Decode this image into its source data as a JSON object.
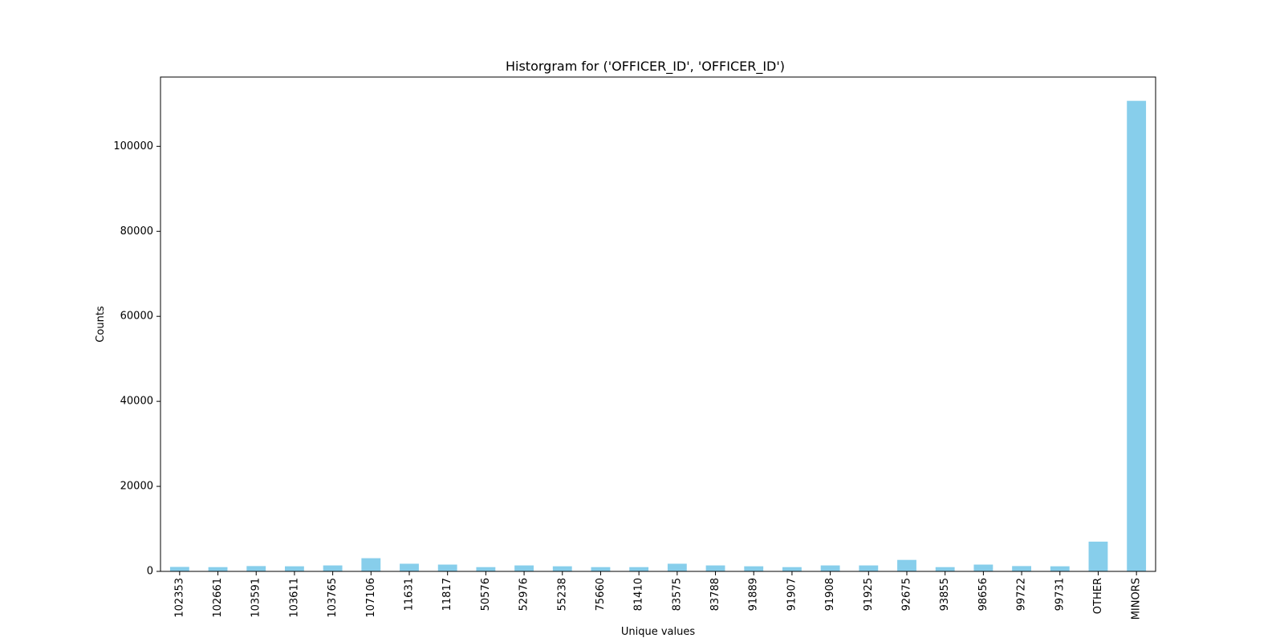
{
  "chart_data": {
    "type": "bar",
    "title": "Historgram for ('OFFICER_ID', 'OFFICER_ID')",
    "xlabel": "Unique values",
    "ylabel": "Counts",
    "categories": [
      "102353",
      "102661",
      "103591",
      "103611",
      "103765",
      "107106",
      "11631",
      "11817",
      "50576",
      "52976",
      "55238",
      "75660",
      "81410",
      "83575",
      "83788",
      "91889",
      "91907",
      "91908",
      "91925",
      "92675",
      "93855",
      "98656",
      "99722",
      "99731",
      "OTHER",
      "MINORS"
    ],
    "values": [
      1050,
      1000,
      1250,
      1200,
      1400,
      3100,
      1800,
      1600,
      1000,
      1400,
      1200,
      1000,
      1000,
      1800,
      1400,
      1200,
      1000,
      1400,
      1400,
      2700,
      1000,
      1600,
      1250,
      1200,
      7000,
      110700
    ],
    "ylim": [
      0,
      116300
    ],
    "yticks": [
      0,
      20000,
      40000,
      60000,
      80000,
      100000
    ],
    "bar_color": "#87ceeb",
    "grid": false,
    "legend": "none"
  }
}
